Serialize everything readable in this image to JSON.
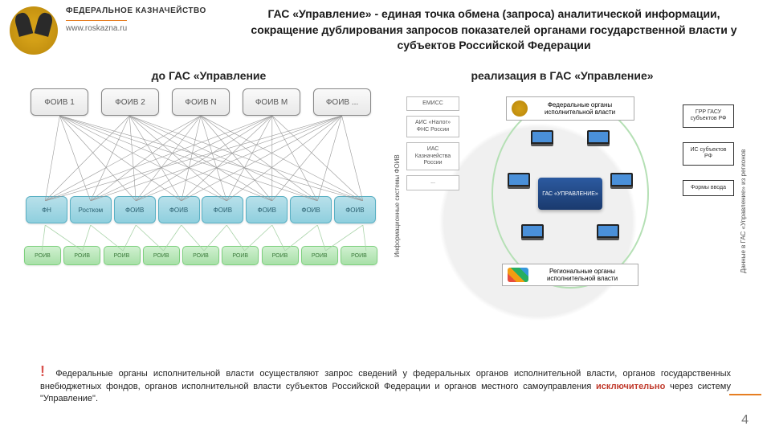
{
  "header": {
    "org_name": "ФЕДЕРАЛЬНОЕ КАЗНАЧЕЙСТВО",
    "url": "www.roskazna.ru",
    "title": "ГАС «Управление» - единая точка обмена (запроса) аналитической информации, сокращение дублирования запросов показателей органами государственной власти у субъектов Российской Федерации"
  },
  "subtitles": {
    "left": "до ГАС «Управление",
    "right": "реализация в ГАС «Управление»"
  },
  "left_diagram": {
    "type": "network",
    "top_nodes": [
      "ФОИВ 1",
      "ФОИВ 2",
      "ФОИВ N",
      "ФОИВ M",
      "ФОИВ ..."
    ],
    "top_color_bg": "#eeeeee",
    "top_color_border": "#888888",
    "mid_nodes": [
      "ФН",
      "Ростком",
      "ФОИВ",
      "ФОИВ",
      "ФОИВ",
      "ФОИВ",
      "ФОИВ",
      "ФОИВ"
    ],
    "mid_color_bg": "#a3d9e5",
    "mid_color_border": "#5ab0c4",
    "bot_nodes": [
      "РОИВ",
      "РОИВ",
      "РОИВ",
      "РОИВ",
      "РОИВ",
      "РОИВ",
      "РОИВ",
      "РОИВ",
      "РОИВ"
    ],
    "bot_color_bg": "#bcecbc",
    "bot_color_border": "#7ed07e",
    "line_color": "#999999"
  },
  "right_diagram": {
    "type": "flowchart",
    "vert_label_left": "Информационные системы ФОИВ",
    "vert_label_right": "Данные в ГАС «Управление» из регионов",
    "info_boxes": [
      "ЕМИСС",
      "АИС «Налог» ФНС России",
      "ИАС Казначейства России",
      "..."
    ],
    "ext_boxes": [
      "ГРР ГАСУ субъектов РФ",
      "ИС субъектов РФ",
      "Формы ввода"
    ],
    "fed_label": "Федеральные органы исполнительной власти",
    "center_label": "ГАС «УПРАВЛЕНИЕ»",
    "reg_label": "Региональные органы исполнительной власти",
    "circle_color": "#b5e0b5",
    "center_bg": "#1f4788",
    "box_border": "#333333"
  },
  "footer": {
    "excl": "!",
    "text_before": "Федеральные органы исполнительной власти осуществляют запрос сведений у федеральных органов исполнительной власти, органов государственных внебюджетных фондов, органов исполнительной власти субъектов Российской Федерации и органов местного самоуправления ",
    "highlight": "исключительно",
    "text_after": " через систему \"Управление\"."
  },
  "page_number": "4",
  "colors": {
    "accent_orange": "#e67e22",
    "text": "#1a1a1a",
    "red": "#c0392b"
  }
}
